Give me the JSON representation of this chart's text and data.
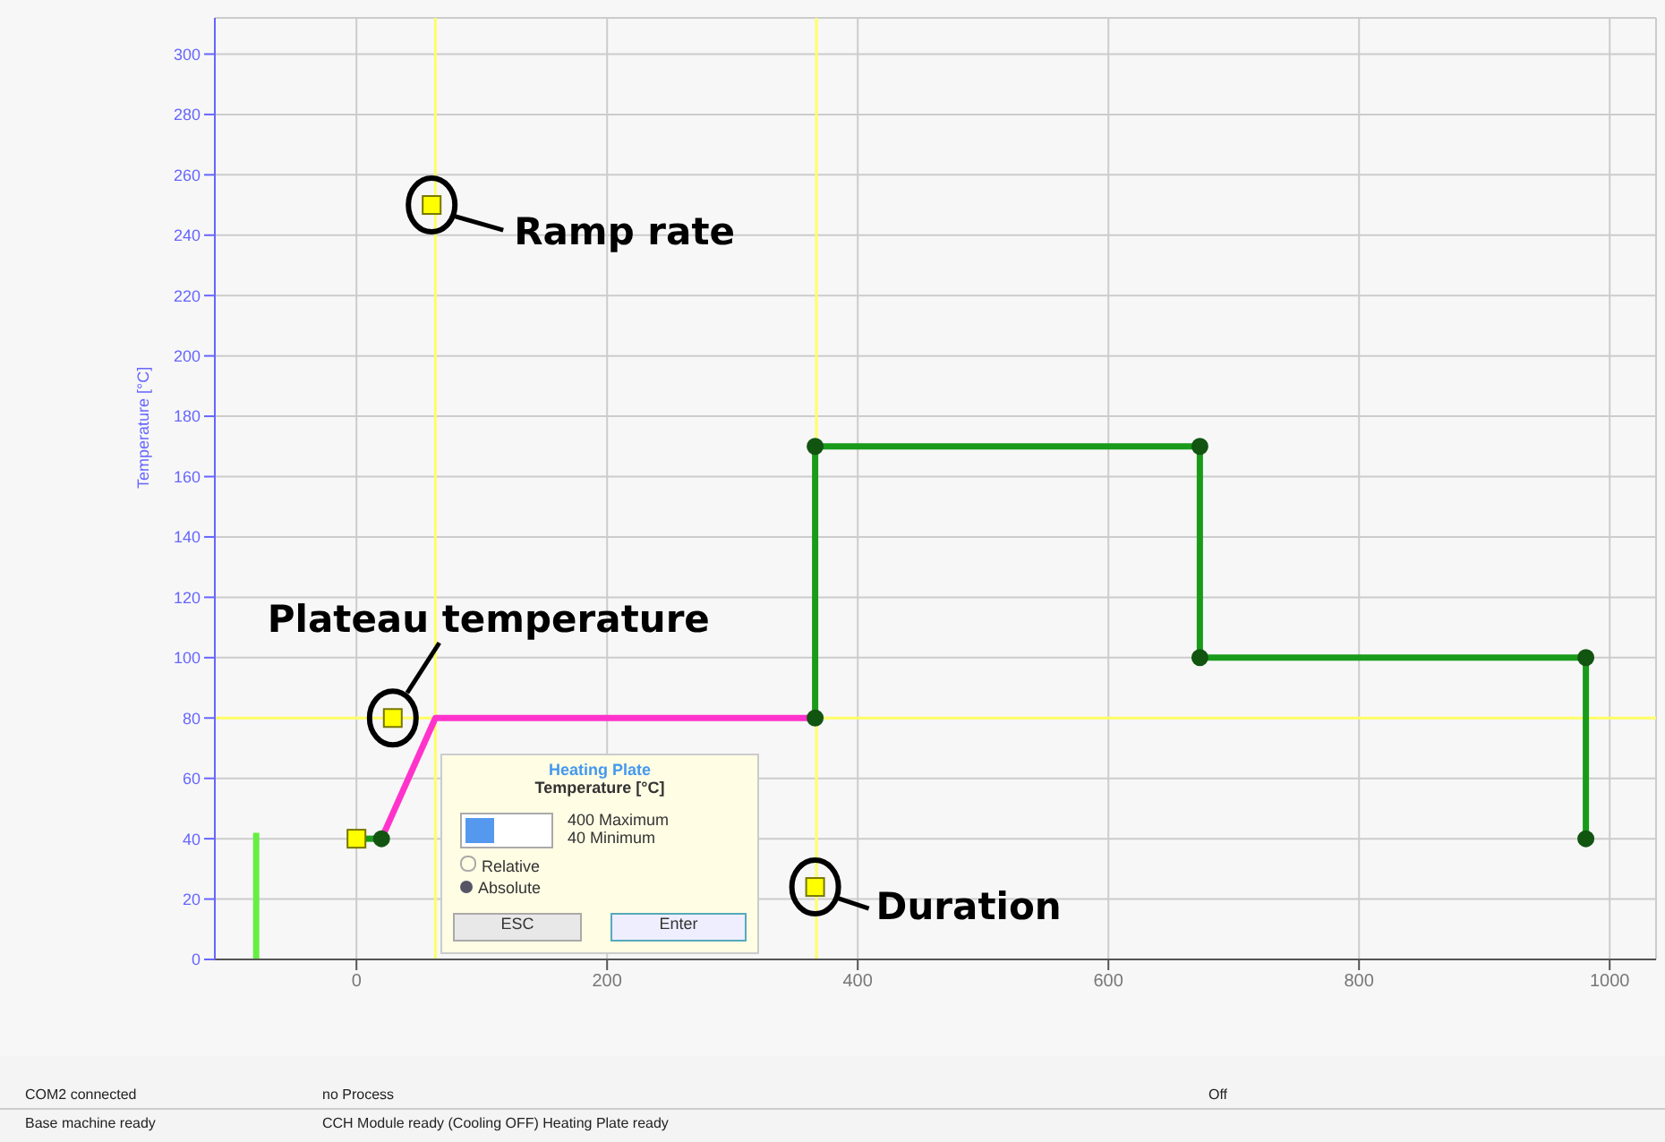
{
  "chart_data": {
    "type": "line",
    "ylabel": "Temperature [°C]",
    "xlim": [
      -113,
      1037
    ],
    "xticks": [
      0,
      200,
      400,
      600,
      800,
      1000
    ],
    "ylim": [
      0,
      312
    ],
    "yticks": [
      0,
      20,
      40,
      60,
      80,
      100,
      120,
      140,
      160,
      180,
      200,
      220,
      240,
      260,
      280,
      300
    ],
    "grid": true,
    "series": [
      {
        "color": "#66ee44",
        "x": [
          -80,
          -80
        ],
        "values": [
          0,
          42
        ],
        "marker": "none"
      },
      {
        "color": "#1a9a1a",
        "x": [
          0,
          20
        ],
        "values": [
          40,
          40
        ],
        "marker": "circle"
      },
      {
        "color": "#ff33cc",
        "x": [
          20,
          63,
          366
        ],
        "values": [
          40,
          80,
          80
        ],
        "marker": "none"
      },
      {
        "color": "#1a9a1a",
        "x": [
          366,
          366,
          673,
          673,
          981,
          981
        ],
        "values": [
          80,
          170,
          170,
          100,
          100,
          40
        ],
        "marker": "circle"
      },
      {
        "type": "scatter",
        "color": "#ffff00",
        "x": [
          0,
          29,
          60,
          366
        ],
        "values": [
          40,
          80,
          250,
          24
        ],
        "marker": "square"
      }
    ],
    "ref_lines": [
      {
        "axis": "x",
        "value": 63,
        "color": "#ffff66"
      },
      {
        "axis": "x",
        "value": 367,
        "color": "#ffff66"
      },
      {
        "axis": "y",
        "value": 80,
        "color": "#ffff66"
      }
    ],
    "annotations": [
      {
        "text": "Ramp rate",
        "x": 60,
        "y": 250
      },
      {
        "text": "Plateau temperature",
        "x": 29,
        "y": 80
      },
      {
        "text": "Duration",
        "x": 366,
        "y": 24
      },
      "Heating Plate",
      "Temperature [°C]",
      "400",
      "Maximum",
      "40",
      "Minimum",
      "Relative",
      "Absolute",
      "ESC",
      "Enter",
      "COM2 connected",
      "no Process",
      "Off",
      "Base machine ready",
      "CCH Module ready (Cooling OFF) Heating Plate ready"
    ]
  }
}
